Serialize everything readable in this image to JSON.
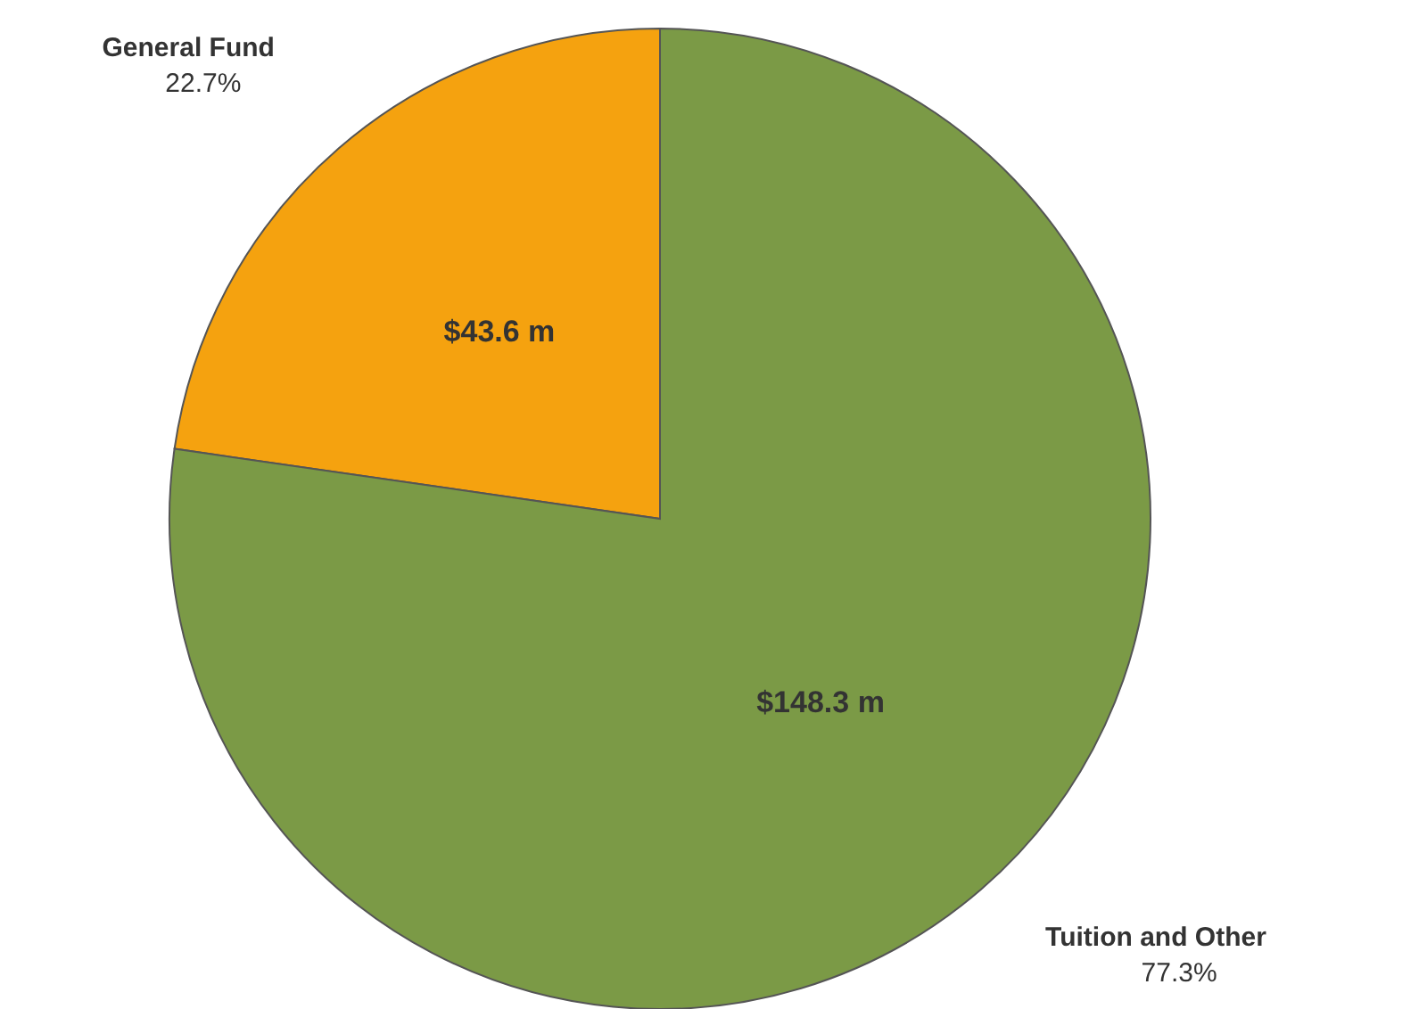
{
  "chart_data": {
    "type": "pie",
    "categories": [
      "General Fund",
      "Tuition and Other"
    ],
    "values": [
      43.6,
      148.3
    ],
    "value_labels": [
      "$43.6 m",
      "$148.3 m"
    ],
    "colors": [
      "#f5a20f",
      "#7b9a46"
    ],
    "annotations": [
      "22.7%",
      "77.3%"
    ]
  }
}
